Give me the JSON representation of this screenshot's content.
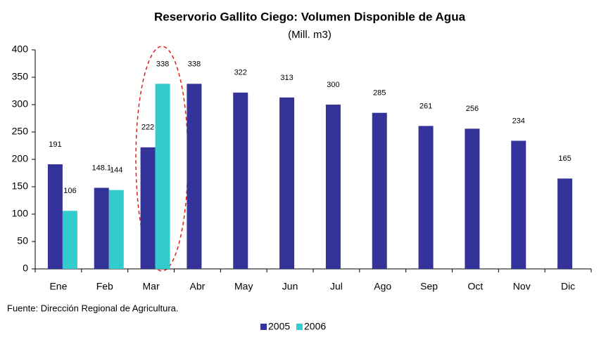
{
  "chart_data": {
    "type": "bar",
    "title": "Reservorio Gallito Ciego: Volumen Disponible de Agua",
    "subtitle": "(Mill. m3)",
    "source": "Fuente: Dirección Regional de Agricultura.",
    "categories": [
      "Ene",
      "Feb",
      "Mar",
      "Abr",
      "May",
      "Jun",
      "Jul",
      "Ago",
      "Sep",
      "Oct",
      "Nov",
      "Dic"
    ],
    "series": [
      {
        "name": "2005",
        "color": "#333399",
        "values": [
          191,
          148.1,
          222,
          338,
          322,
          313,
          300,
          285,
          261,
          256,
          234,
          165
        ]
      },
      {
        "name": "2006",
        "color": "#33cccc",
        "values": [
          106,
          144,
          338,
          null,
          null,
          null,
          null,
          null,
          null,
          null,
          null,
          null
        ]
      }
    ],
    "ylim": [
      0,
      400
    ],
    "yticks": [
      0,
      50,
      100,
      150,
      200,
      250,
      300,
      350,
      400
    ],
    "grid": false,
    "legend": "bottom"
  }
}
